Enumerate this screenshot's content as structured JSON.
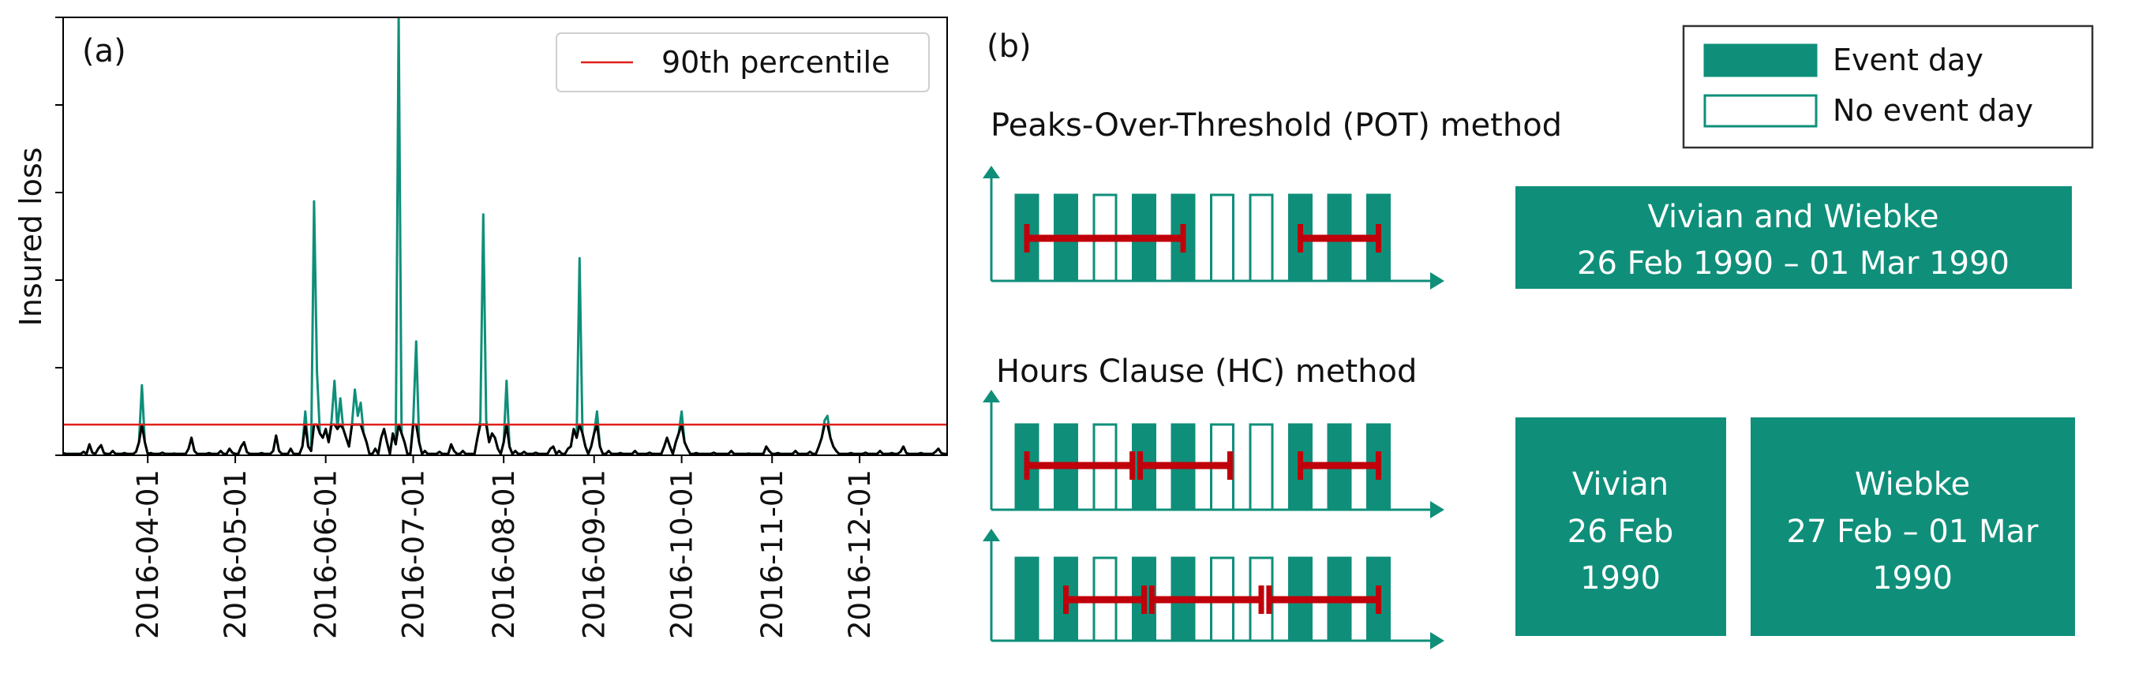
{
  "panel_a": {
    "label": "(a)",
    "legend_label": "90th percentile",
    "legend_position": "top-right"
  },
  "panel_b": {
    "label": "(b)",
    "legend": {
      "event_label": "Event day",
      "no_event_label": "No event day"
    },
    "pot_title": "Peaks-Over-Threshold (POT) method",
    "hc_title": "Hours Clause (HC) method",
    "pot_box": {
      "line1": "Vivian and Wiebke",
      "line2": "26 Feb 1990 – 01 Mar 1990"
    },
    "hc_box1": {
      "line1": "Vivian",
      "line2": "26 Feb",
      "line3": "1990"
    },
    "hc_box2": {
      "line1": "Wiebke",
      "line2": "27 Feb – 01 Mar",
      "line3": "1990"
    },
    "rows": [
      {
        "days": [
          1,
          1,
          0,
          1,
          1,
          0,
          0,
          1,
          1,
          1
        ],
        "bars": [
          [
            1,
            5
          ],
          [
            8,
            10
          ]
        ]
      },
      {
        "days": [
          1,
          1,
          0,
          1,
          1,
          0,
          0,
          1,
          1,
          1
        ],
        "bars": [
          [
            1,
            3.7
          ],
          [
            3.9,
            6.2
          ],
          [
            8,
            10
          ]
        ]
      },
      {
        "days": [
          1,
          1,
          0,
          1,
          1,
          0,
          0,
          1,
          1,
          1
        ],
        "bars": [
          [
            2,
            4
          ],
          [
            4.2,
            7
          ],
          [
            7.2,
            10
          ]
        ]
      }
    ]
  },
  "colors": {
    "event": "#0f8f7a",
    "threshold": "#e0201b",
    "bar": "#c0000a",
    "loss_line": "#000000",
    "box": "#0f8f7a"
  },
  "chart_data": {
    "type": "line",
    "title": "",
    "xlabel": "",
    "ylabel": "Insured loss",
    "x_range": [
      "2016-03-03",
      "2016-12-31"
    ],
    "ylim": [
      0,
      100
    ],
    "y_ticks": [
      0,
      20,
      40,
      60,
      80,
      100
    ],
    "x_ticks": [
      "2016-04-01",
      "2016-05-01",
      "2016-06-01",
      "2016-07-01",
      "2016-08-01",
      "2016-09-01",
      "2016-10-01",
      "2016-11-01",
      "2016-12-01"
    ],
    "threshold": 7,
    "series": [
      {
        "points": [
          [
            "2016-03-03",
            0.5
          ],
          [
            "2016-03-10",
            0.8
          ],
          [
            "2016-03-12",
            2.5
          ],
          [
            "2016-03-13",
            0.6
          ],
          [
            "2016-03-15",
            1.5
          ],
          [
            "2016-03-16",
            2.3
          ],
          [
            "2016-03-17",
            0.5
          ],
          [
            "2016-03-20",
            1
          ],
          [
            "2016-03-24",
            0.5
          ],
          [
            "2016-03-28",
            0.8
          ],
          [
            "2016-03-29",
            3
          ],
          [
            "2016-03-30",
            16
          ],
          [
            "2016-03-31",
            3
          ],
          [
            "2016-04-02",
            0.5
          ],
          [
            "2016-04-06",
            0.6
          ],
          [
            "2016-04-10",
            0.4
          ],
          [
            "2016-04-15",
            1.5
          ],
          [
            "2016-04-16",
            4
          ],
          [
            "2016-04-17",
            1
          ],
          [
            "2016-04-22",
            0.5
          ],
          [
            "2016-04-26",
            1
          ],
          [
            "2016-04-29",
            1.5
          ],
          [
            "2016-04-30",
            0.6
          ],
          [
            "2016-05-03",
            2
          ],
          [
            "2016-05-04",
            3
          ],
          [
            "2016-05-05",
            0.7
          ],
          [
            "2016-05-10",
            0.5
          ],
          [
            "2016-05-14",
            1
          ],
          [
            "2016-05-15",
            4.5
          ],
          [
            "2016-05-16",
            1
          ],
          [
            "2016-05-20",
            1.5
          ],
          [
            "2016-05-24",
            2
          ],
          [
            "2016-05-25",
            10
          ],
          [
            "2016-05-26",
            2
          ],
          [
            "2016-05-27",
            1
          ],
          [
            "2016-05-28",
            58
          ],
          [
            "2016-05-29",
            19
          ],
          [
            "2016-05-30",
            5
          ],
          [
            "2016-05-31",
            4
          ],
          [
            "2016-06-01",
            6
          ],
          [
            "2016-06-02",
            3
          ],
          [
            "2016-06-03",
            8
          ],
          [
            "2016-06-04",
            17
          ],
          [
            "2016-06-05",
            6
          ],
          [
            "2016-06-06",
            13
          ],
          [
            "2016-06-07",
            6
          ],
          [
            "2016-06-08",
            4
          ],
          [
            "2016-06-09",
            2
          ],
          [
            "2016-06-10",
            7
          ],
          [
            "2016-06-11",
            15
          ],
          [
            "2016-06-12",
            9
          ],
          [
            "2016-06-13",
            12
          ],
          [
            "2016-06-14",
            5
          ],
          [
            "2016-06-15",
            3
          ],
          [
            "2016-06-18",
            1.5
          ],
          [
            "2016-06-20",
            4
          ],
          [
            "2016-06-21",
            6
          ],
          [
            "2016-06-22",
            3
          ],
          [
            "2016-06-24",
            5
          ],
          [
            "2016-06-25",
            2.5
          ],
          [
            "2016-06-26",
            100
          ],
          [
            "2016-06-27",
            5
          ],
          [
            "2016-06-28",
            3
          ],
          [
            "2016-07-01",
            8
          ],
          [
            "2016-07-02",
            26
          ],
          [
            "2016-07-03",
            3
          ],
          [
            "2016-07-05",
            1
          ],
          [
            "2016-07-10",
            0.8
          ],
          [
            "2016-07-14",
            2.5
          ],
          [
            "2016-07-15",
            1
          ],
          [
            "2016-07-18",
            1
          ],
          [
            "2016-07-23",
            4
          ],
          [
            "2016-07-24",
            8
          ],
          [
            "2016-07-25",
            55
          ],
          [
            "2016-07-26",
            8
          ],
          [
            "2016-07-27",
            3
          ],
          [
            "2016-07-28",
            5
          ],
          [
            "2016-07-29",
            4
          ],
          [
            "2016-07-30",
            1.5
          ],
          [
            "2016-08-01",
            3
          ],
          [
            "2016-08-02",
            17
          ],
          [
            "2016-08-03",
            2
          ],
          [
            "2016-08-05",
            1
          ],
          [
            "2016-08-08",
            0.8
          ],
          [
            "2016-08-12",
            0.6
          ],
          [
            "2016-08-17",
            1.5
          ],
          [
            "2016-08-18",
            2
          ],
          [
            "2016-08-20",
            1
          ],
          [
            "2016-08-23",
            1.5
          ],
          [
            "2016-08-24",
            2
          ],
          [
            "2016-08-25",
            6
          ],
          [
            "2016-08-26",
            4
          ],
          [
            "2016-08-27",
            45
          ],
          [
            "2016-08-28",
            5
          ],
          [
            "2016-08-29",
            2
          ],
          [
            "2016-08-31",
            2
          ],
          [
            "2016-09-01",
            5
          ],
          [
            "2016-09-02",
            10
          ],
          [
            "2016-09-03",
            2
          ],
          [
            "2016-09-06",
            1
          ],
          [
            "2016-09-10",
            0.5
          ],
          [
            "2016-09-15",
            1
          ],
          [
            "2016-09-20",
            0.6
          ],
          [
            "2016-09-25",
            2
          ],
          [
            "2016-09-26",
            4
          ],
          [
            "2016-09-27",
            2
          ],
          [
            "2016-09-29",
            3
          ],
          [
            "2016-09-30",
            5
          ],
          [
            "2016-10-01",
            10
          ],
          [
            "2016-10-02",
            3
          ],
          [
            "2016-10-03",
            1.5
          ],
          [
            "2016-10-06",
            0.5
          ],
          [
            "2016-10-12",
            0.6
          ],
          [
            "2016-10-18",
            1
          ],
          [
            "2016-10-24",
            0.4
          ],
          [
            "2016-10-30",
            2
          ],
          [
            "2016-10-31",
            1
          ],
          [
            "2016-11-03",
            0.5
          ],
          [
            "2016-11-09",
            1
          ],
          [
            "2016-11-14",
            0.8
          ],
          [
            "2016-11-17",
            2
          ],
          [
            "2016-11-18",
            4
          ],
          [
            "2016-11-19",
            8
          ],
          [
            "2016-11-20",
            9
          ],
          [
            "2016-11-21",
            4
          ],
          [
            "2016-11-22",
            2
          ],
          [
            "2016-11-23",
            1
          ],
          [
            "2016-11-28",
            0.5
          ],
          [
            "2016-12-03",
            0.6
          ],
          [
            "2016-12-08",
            1
          ],
          [
            "2016-12-12",
            0.5
          ],
          [
            "2016-12-15",
            0.8
          ],
          [
            "2016-12-16",
            2
          ],
          [
            "2016-12-17",
            0.5
          ],
          [
            "2016-12-22",
            0.5
          ],
          [
            "2016-12-27",
            0.8
          ],
          [
            "2016-12-28",
            1.5
          ],
          [
            "2016-12-29",
            0.5
          ]
        ]
      }
    ]
  }
}
